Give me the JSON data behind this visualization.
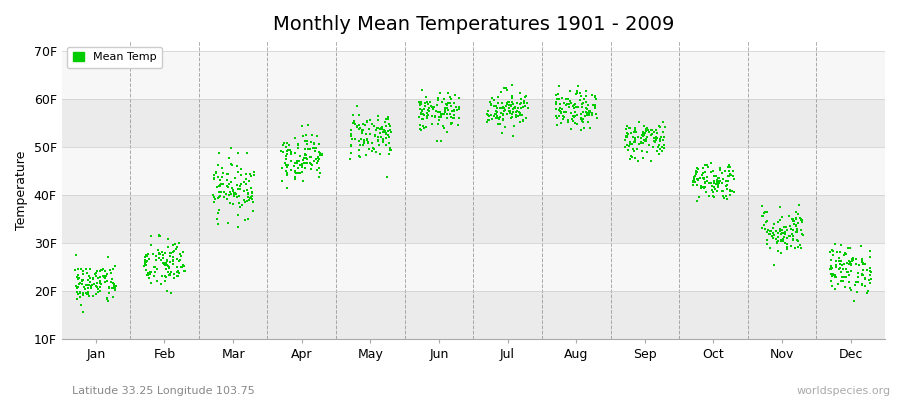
{
  "title": "Monthly Mean Temperatures 1901 - 2009",
  "ylabel": "Temperature",
  "subtitle": "Latitude 33.25 Longitude 103.75",
  "watermark": "worldspecies.org",
  "legend_label": "Mean Temp",
  "dot_color": "#00CC00",
  "dot_size": 2.5,
  "years": 109,
  "ylim": [
    10,
    72
  ],
  "yticks": [
    10,
    20,
    30,
    40,
    50,
    60,
    70
  ],
  "ytick_labels": [
    "10F",
    "20F",
    "30F",
    "40F",
    "50F",
    "60F",
    "70F"
  ],
  "month_names": [
    "Jan",
    "Feb",
    "Mar",
    "Apr",
    "May",
    "Jun",
    "Jul",
    "Aug",
    "Sep",
    "Oct",
    "Nov",
    "Dec"
  ],
  "mean_temps_F": [
    21.5,
    25.5,
    41.5,
    48.0,
    52.5,
    57.0,
    58.0,
    57.5,
    51.5,
    43.0,
    32.5,
    24.5
  ],
  "std_temps_F": [
    2.2,
    2.8,
    3.0,
    2.5,
    2.5,
    2.0,
    2.0,
    2.0,
    2.0,
    2.0,
    2.5,
    2.5
  ],
  "bg_color": "#ffffff",
  "band_color_dark": "#ebebeb",
  "band_color_light": "#f7f7f7",
  "grid_color": "#888888",
  "title_fontsize": 14,
  "label_fontsize": 9,
  "tick_fontsize": 9,
  "subtitle_color": "#888888",
  "watermark_color": "#aaaaaa"
}
